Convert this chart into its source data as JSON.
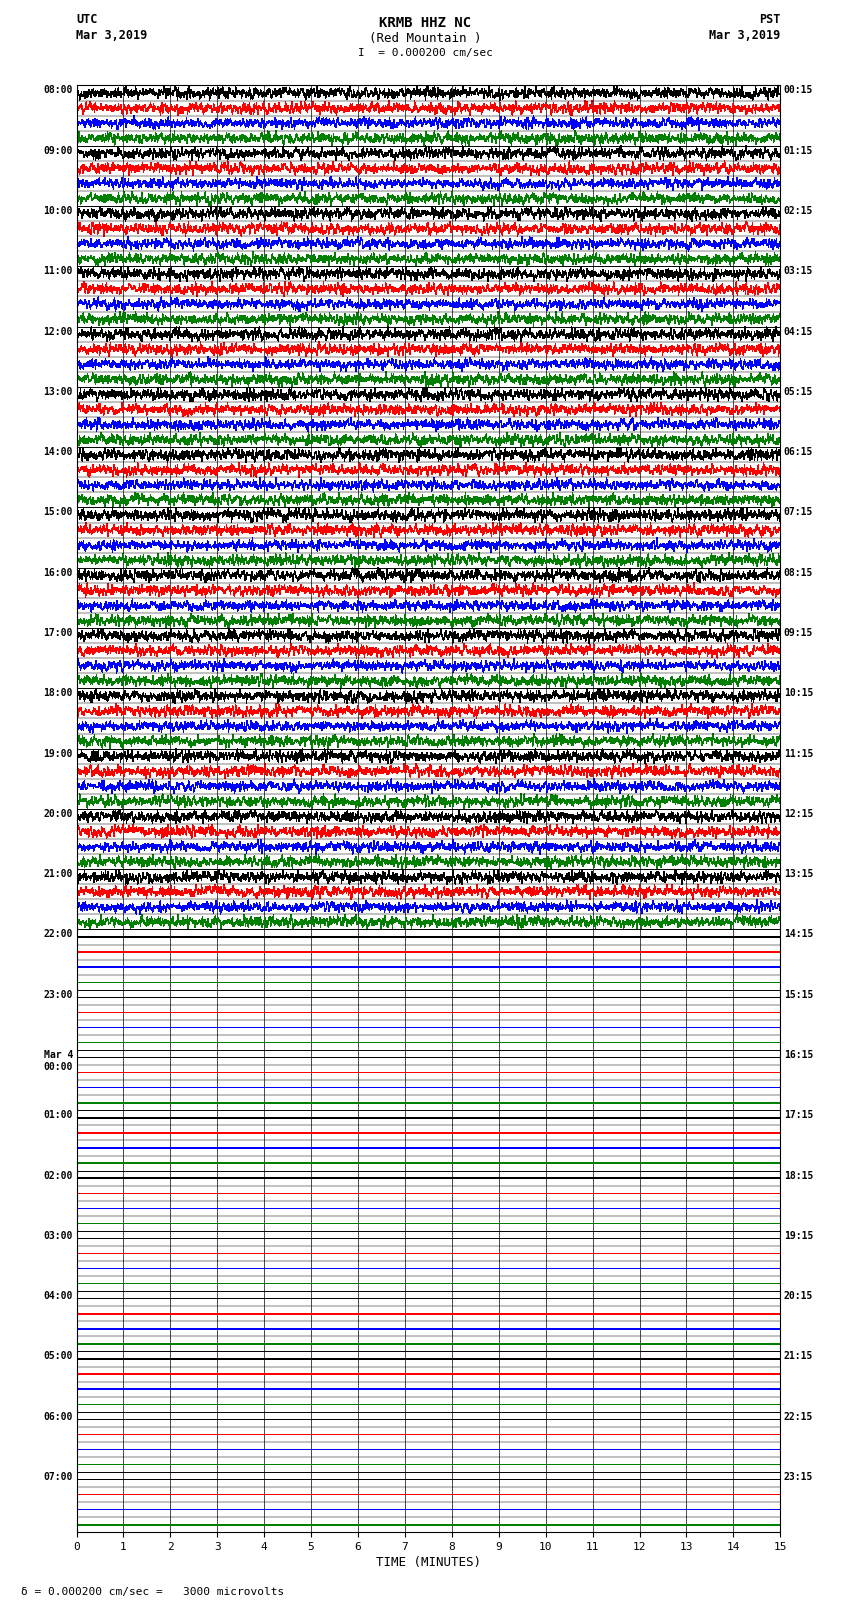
{
  "title_line1": "KRMB HHZ NC",
  "title_line2": "(Red Mountain )",
  "scale_text": "= 0.000200 cm/sec",
  "bottom_scale": "= 0.000200 cm/sec =   3000 microvolts",
  "left_header1": "UTC",
  "left_header2": "Mar 3,2019",
  "right_header1": "PST",
  "right_header2": "Mar 3,2019",
  "xlabel": "TIME (MINUTES)",
  "xlim": [
    0,
    15
  ],
  "xticks": [
    0,
    1,
    2,
    3,
    4,
    5,
    6,
    7,
    8,
    9,
    10,
    11,
    12,
    13,
    14,
    15
  ],
  "left_times": [
    "08:00",
    "09:00",
    "10:00",
    "11:00",
    "12:00",
    "13:00",
    "14:00",
    "15:00",
    "16:00",
    "17:00",
    "18:00",
    "19:00",
    "20:00",
    "21:00",
    "22:00",
    "23:00",
    "Mar 4\n00:00",
    "01:00",
    "02:00",
    "03:00",
    "04:00",
    "05:00",
    "06:00",
    "07:00"
  ],
  "right_times": [
    "00:15",
    "01:15",
    "02:15",
    "03:15",
    "04:15",
    "05:15",
    "06:15",
    "07:15",
    "08:15",
    "09:15",
    "10:15",
    "11:15",
    "12:15",
    "13:15",
    "14:15",
    "15:15",
    "16:15",
    "17:15",
    "18:15",
    "19:15",
    "20:15",
    "21:15",
    "22:15",
    "23:15"
  ],
  "n_rows": 24,
  "active_rows": 14,
  "colors": [
    "black",
    "red",
    "blue",
    "green"
  ],
  "traces_per_row": 4,
  "figsize": [
    8.5,
    16.13
  ],
  "dpi": 100
}
